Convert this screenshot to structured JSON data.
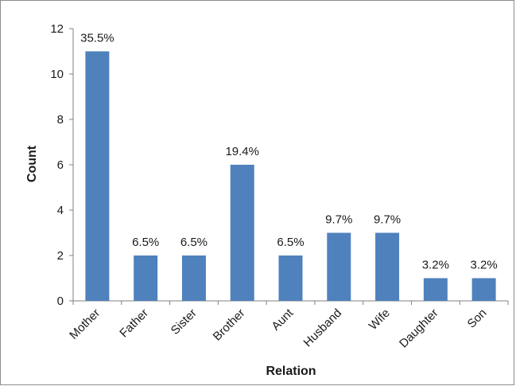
{
  "chart_data": {
    "type": "bar",
    "title": "",
    "xlabel": "Relation",
    "ylabel": "Count",
    "categories": [
      "Mother",
      "Father",
      "Sister",
      "Brother",
      "Aunt",
      "Husband",
      "Wife",
      "Daughter",
      "Son"
    ],
    "values": [
      11,
      2,
      2,
      6,
      2,
      3,
      3,
      1,
      1
    ],
    "data_labels": [
      "35.5%",
      "6.5%",
      "6.5%",
      "19.4%",
      "6.5%",
      "9.7%",
      "9.7%",
      "3.2%",
      "3.2%"
    ],
    "ylim": [
      0,
      12
    ],
    "yticks": [
      "0",
      "2",
      "4",
      "6",
      "8",
      "10",
      "12"
    ],
    "grid": false,
    "legend": "none",
    "bar_color": "#4f81bd"
  }
}
